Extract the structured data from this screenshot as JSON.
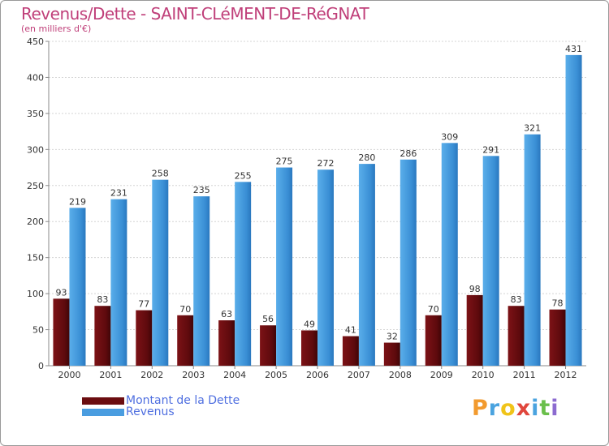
{
  "header": {
    "title": "Revenus/Dette - SAINT-CLéMENT-DE-RéGNAT",
    "subtitle": "(en milliers d'€)"
  },
  "brand": {
    "letters": [
      "P",
      "r",
      "o",
      "x",
      "i",
      "t",
      "i"
    ],
    "colors": [
      "#f29a2e",
      "#4aa3df",
      "#f0c419",
      "#e0463c",
      "#4aa3df",
      "#6abf4b",
      "#8c6bd0"
    ]
  },
  "colors": {
    "dette": "#6b0d10",
    "revenus": "#4a9de0",
    "legend_text": "#4f6fe0",
    "title": "#c0407a"
  },
  "chart_data": {
    "type": "bar",
    "title": "Revenus/Dette - SAINT-CLéMENT-DE-RéGNAT",
    "subtitle": "(en milliers d'€)",
    "categories": [
      "2000",
      "2001",
      "2002",
      "2003",
      "2004",
      "2005",
      "2006",
      "2007",
      "2008",
      "2009",
      "2010",
      "2011",
      "2012"
    ],
    "series": [
      {
        "name": "Montant de la Dette",
        "values": [
          93,
          83,
          77,
          70,
          63,
          56,
          49,
          41,
          32,
          70,
          98,
          83,
          78
        ]
      },
      {
        "name": "Revenus",
        "values": [
          219,
          231,
          258,
          235,
          255,
          275,
          272,
          280,
          286,
          309,
          291,
          321,
          431
        ]
      }
    ],
    "ylim": [
      0,
      450
    ],
    "yticks": [
      0,
      50,
      100,
      150,
      200,
      250,
      300,
      350,
      400,
      450
    ],
    "grid": true,
    "legend": "bottom-left",
    "data_labels": true
  }
}
